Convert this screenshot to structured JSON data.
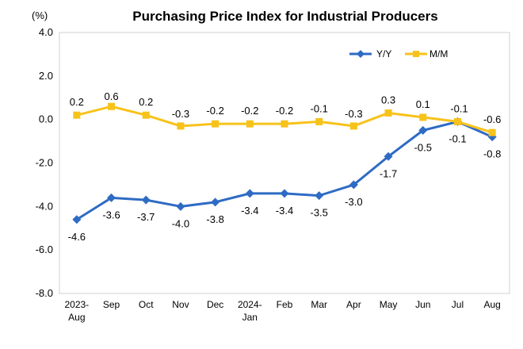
{
  "chart_data": {
    "type": "line",
    "title": "Purchasing Price Index for Industrial Producers",
    "unit_label": "(%)",
    "categories": [
      [
        "2023-",
        "Aug"
      ],
      [
        "Sep"
      ],
      [
        "Oct"
      ],
      [
        "Nov"
      ],
      [
        "Dec"
      ],
      [
        "2024-",
        "Jan"
      ],
      [
        "Feb"
      ],
      [
        "Mar"
      ],
      [
        "Apr"
      ],
      [
        "May"
      ],
      [
        "Jun"
      ],
      [
        "Jul"
      ],
      [
        "Aug"
      ]
    ],
    "ylim": [
      -8.0,
      4.0
    ],
    "yticks": [
      4.0,
      2.0,
      0.0,
      -2.0,
      -4.0,
      -6.0,
      -8.0
    ],
    "ytick_labels": [
      "4.0",
      "2.0",
      "0.0",
      "-2.0",
      "-4.0",
      "-6.0",
      "-8.0"
    ],
    "grid": false,
    "legend_position": "top-right",
    "series": [
      {
        "name": "Y/Y",
        "color": "#2e6bc4",
        "marker": "diamond",
        "values": [
          -4.6,
          -3.6,
          -3.7,
          -4.0,
          -3.8,
          -3.4,
          -3.4,
          -3.5,
          -3.0,
          -1.7,
          -0.5,
          -0.1,
          -0.8
        ],
        "labels": [
          "-4.6",
          "-3.6",
          "-3.7",
          "-4.0",
          "-3.8",
          "-3.4",
          "-3.4",
          "-3.5",
          "-3.0",
          "-1.7",
          "-0.5",
          "-0.1",
          "-0.8"
        ]
      },
      {
        "name": "M/M",
        "color": "#f7c21a",
        "marker": "square",
        "values": [
          0.2,
          0.6,
          0.2,
          -0.3,
          -0.2,
          -0.2,
          -0.2,
          -0.1,
          -0.3,
          0.3,
          0.1,
          -0.1,
          -0.6
        ],
        "labels": [
          "0.2",
          "0.6",
          "0.2",
          "-0.3",
          "-0.2",
          "-0.2",
          "-0.2",
          "-0.1",
          "-0.3",
          "0.3",
          "0.1",
          "-0.1",
          "-0.6"
        ]
      }
    ]
  }
}
